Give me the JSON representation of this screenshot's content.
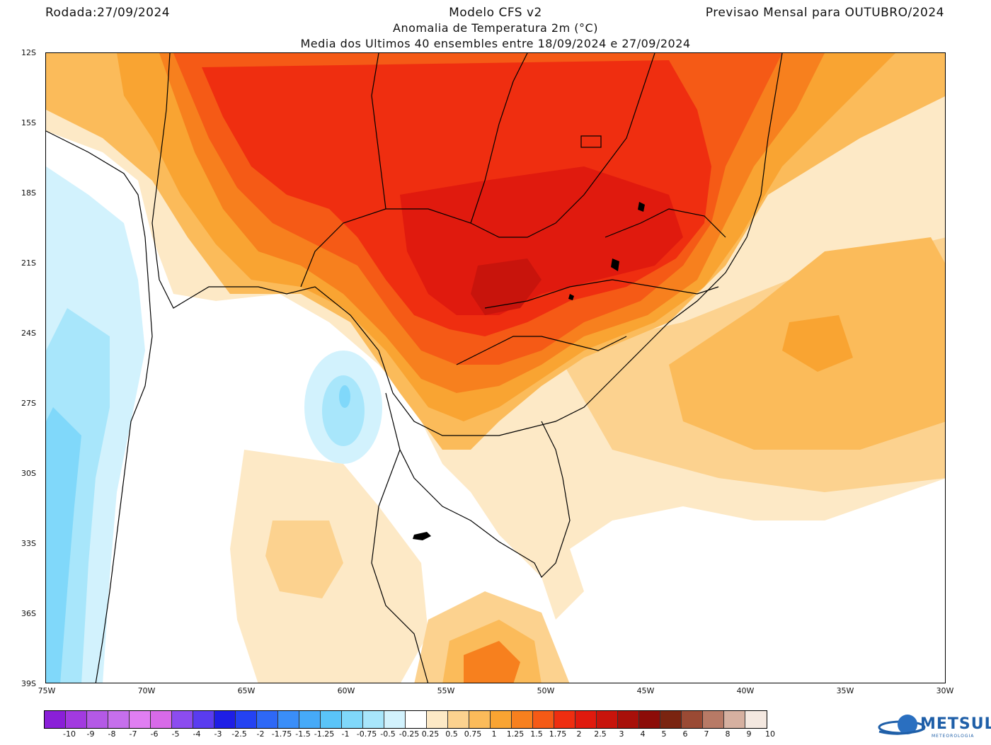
{
  "header": {
    "run_date": "Rodada:27/09/2024",
    "model": "Modelo CFS v2",
    "forecast": "Previsao Mensal para OUTUBRO/2024",
    "variable": "Anomalia de Temperatura 2m (°C)",
    "ensemble": "Media dos Ultimos 40 ensembles entre 18/09/2024 e 27/09/2024"
  },
  "map": {
    "lat_labels": [
      "12S",
      "15S",
      "18S",
      "21S",
      "24S",
      "27S",
      "30S",
      "33S",
      "36S",
      "39S"
    ],
    "lon_labels": [
      "75W",
      "70W",
      "65W",
      "60W",
      "55W",
      "50W",
      "45W",
      "40W",
      "35W",
      "30W"
    ],
    "lat_range": [
      -39,
      -12
    ],
    "lon_range": [
      -75,
      -30
    ]
  },
  "legend": {
    "labels": [
      "-10",
      "-9",
      "-8",
      "-7",
      "-6",
      "-5",
      "-4",
      "-3",
      "-2.5",
      "-2",
      "-1.75",
      "-1.5",
      "-1.25",
      "-1",
      "-0.75",
      "-0.5",
      "-0.25",
      "0.25",
      "0.5",
      "0.75",
      "1",
      "1.25",
      "1.5",
      "1.75",
      "2",
      "2.5",
      "3",
      "4",
      "5",
      "6",
      "7",
      "8",
      "9",
      "10"
    ],
    "colors": [
      "#8a1fd8",
      "#a23ae0",
      "#b459e6",
      "#c66fec",
      "#e07ef2",
      "#d86ae8",
      "#8c4cf0",
      "#5a3cf0",
      "#1e1ee6",
      "#2442f2",
      "#2e68f6",
      "#3a8ef8",
      "#46aaf8",
      "#5ac4f8",
      "#80d8fa",
      "#a8e6fb",
      "#d2f2fd",
      "#ffffff",
      "#fde9c6",
      "#fcd28f",
      "#fbbb5a",
      "#f9a432",
      "#f7801e",
      "#f55a16",
      "#ef2e10",
      "#e01a0e",
      "#c8140c",
      "#a8100a",
      "#8c0c08",
      "#7a2410",
      "#9a4a34",
      "#b87a66",
      "#d6b0a0",
      "#f4e8e0"
    ]
  },
  "logo": {
    "name": "METSUL",
    "sub": "METEOROLOGIA"
  }
}
